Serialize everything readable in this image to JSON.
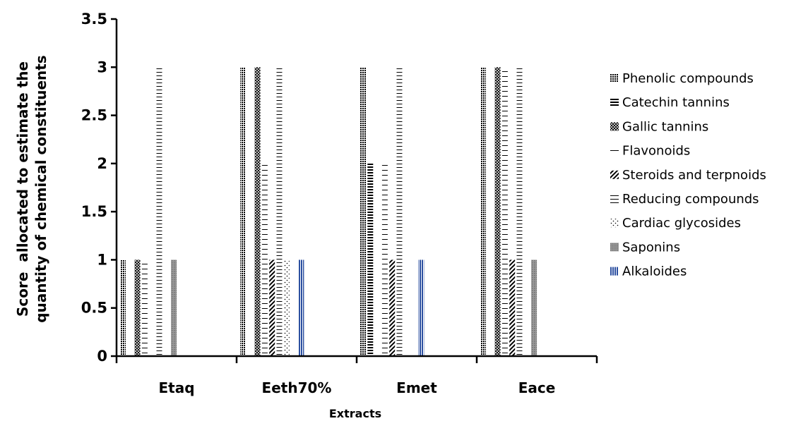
{
  "chart_data": {
    "type": "bar",
    "title": "",
    "xlabel": "Extracts",
    "ylabel_lines": [
      "Score  allocated to estimate the",
      "quantity of chemical constituents"
    ],
    "categories": [
      "Etaq",
      "Eeth70%",
      "Emet",
      "Eace"
    ],
    "ylim": [
      0,
      3.5
    ],
    "yticks": [
      "0",
      "0.5",
      "1",
      "1.5",
      "2",
      "2.5",
      "3",
      "3.5"
    ],
    "grid": false,
    "legend_position": "right",
    "series": [
      {
        "name": "Phenolic compounds",
        "pattern": "dots",
        "values": [
          1,
          3,
          3,
          3
        ]
      },
      {
        "name": "Catechin tannins",
        "pattern": "hlines",
        "values": [
          0,
          0,
          2,
          0
        ]
      },
      {
        "name": "Gallic tannins",
        "pattern": "cross",
        "values": [
          1,
          3,
          0,
          3
        ]
      },
      {
        "name": "Flavonoids",
        "pattern": "hbar",
        "values": [
          1,
          2,
          2,
          3
        ]
      },
      {
        "name": "Steroids and terpnoids",
        "pattern": "diag",
        "values": [
          0,
          1,
          1,
          1
        ]
      },
      {
        "name": "Reducing compounds",
        "pattern": "grid",
        "values": [
          3,
          3,
          3,
          3
        ]
      },
      {
        "name": "Cardiac glycosides",
        "pattern": "sparsediag",
        "values": [
          0,
          1,
          0,
          0
        ]
      },
      {
        "name": "Saponins",
        "pattern": "gray",
        "values": [
          1,
          0,
          0,
          1
        ]
      },
      {
        "name": "Alkaloides",
        "pattern": "bluev",
        "values": [
          0,
          1,
          1,
          0
        ]
      }
    ]
  }
}
